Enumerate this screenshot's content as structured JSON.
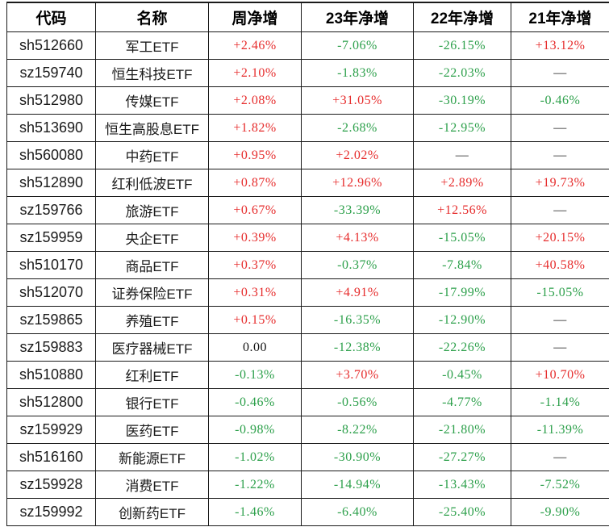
{
  "colors": {
    "positive": "#e62c2c",
    "negative": "#2da04b",
    "neutral": "#141414",
    "border": "#1a1a1a",
    "background": "#ffffff"
  },
  "chart_data": {
    "type": "table",
    "title": "",
    "columns": [
      "代码",
      "名称",
      "周净增",
      "23年净增",
      "22年净增",
      "21年净增"
    ],
    "rows": [
      {
        "code": "sh512660",
        "name": "军工ETF",
        "week": "+2.46%",
        "y23": "-7.06%",
        "y22": "-26.15%",
        "y21": "+13.12%"
      },
      {
        "code": "sz159740",
        "name": "恒生科技ETF",
        "week": "+2.10%",
        "y23": "-1.83%",
        "y22": "-22.03%",
        "y21": "—"
      },
      {
        "code": "sh512980",
        "name": "传媒ETF",
        "week": "+2.08%",
        "y23": "+31.05%",
        "y22": "-30.19%",
        "y21": "-0.46%"
      },
      {
        "code": "sh513690",
        "name": "恒生高股息ETF",
        "week": "+1.82%",
        "y23": "-2.68%",
        "y22": "-12.95%",
        "y21": "—"
      },
      {
        "code": "sh560080",
        "name": "中药ETF",
        "week": "+0.95%",
        "y23": "+2.02%",
        "y22": "—",
        "y21": "—"
      },
      {
        "code": "sh512890",
        "name": "红利低波ETF",
        "week": "+0.87%",
        "y23": "+12.96%",
        "y22": "+2.89%",
        "y21": "+19.73%"
      },
      {
        "code": "sz159766",
        "name": "旅游ETF",
        "week": "+0.67%",
        "y23": "-33.39%",
        "y22": "+12.56%",
        "y21": "—"
      },
      {
        "code": "sz159959",
        "name": "央企ETF",
        "week": "+0.39%",
        "y23": "+4.13%",
        "y22": "-15.05%",
        "y21": "+20.15%"
      },
      {
        "code": "sh510170",
        "name": "商品ETF",
        "week": "+0.37%",
        "y23": "-0.37%",
        "y22": "-7.84%",
        "y21": "+40.58%"
      },
      {
        "code": "sh512070",
        "name": "证券保险ETF",
        "week": "+0.31%",
        "y23": "+4.91%",
        "y22": "-17.99%",
        "y21": "-15.05%"
      },
      {
        "code": "sz159865",
        "name": "养殖ETF",
        "week": "+0.15%",
        "y23": "-16.35%",
        "y22": "-12.90%",
        "y21": "—"
      },
      {
        "code": "sz159883",
        "name": "医疗器械ETF",
        "week": "0.00",
        "y23": "-12.38%",
        "y22": "-22.26%",
        "y21": "—"
      },
      {
        "code": "sh510880",
        "name": "红利ETF",
        "week": "-0.13%",
        "y23": "+3.70%",
        "y22": "-0.45%",
        "y21": "+10.70%"
      },
      {
        "code": "sh512800",
        "name": "银行ETF",
        "week": "-0.46%",
        "y23": "-0.56%",
        "y22": "-4.77%",
        "y21": "-1.14%"
      },
      {
        "code": "sz159929",
        "name": "医药ETF",
        "week": "-0.98%",
        "y23": "-8.22%",
        "y22": "-21.80%",
        "y21": "-11.39%"
      },
      {
        "code": "sh516160",
        "name": "新能源ETF",
        "week": "-1.02%",
        "y23": "-30.90%",
        "y22": "-27.27%",
        "y21": "—"
      },
      {
        "code": "sz159928",
        "name": "消费ETF",
        "week": "-1.22%",
        "y23": "-14.94%",
        "y22": "-13.43%",
        "y21": "-7.52%"
      },
      {
        "code": "sz159992",
        "name": "创新药ETF",
        "week": "-1.46%",
        "y23": "-6.40%",
        "y22": "-25.40%",
        "y21": "-9.90%"
      }
    ]
  }
}
